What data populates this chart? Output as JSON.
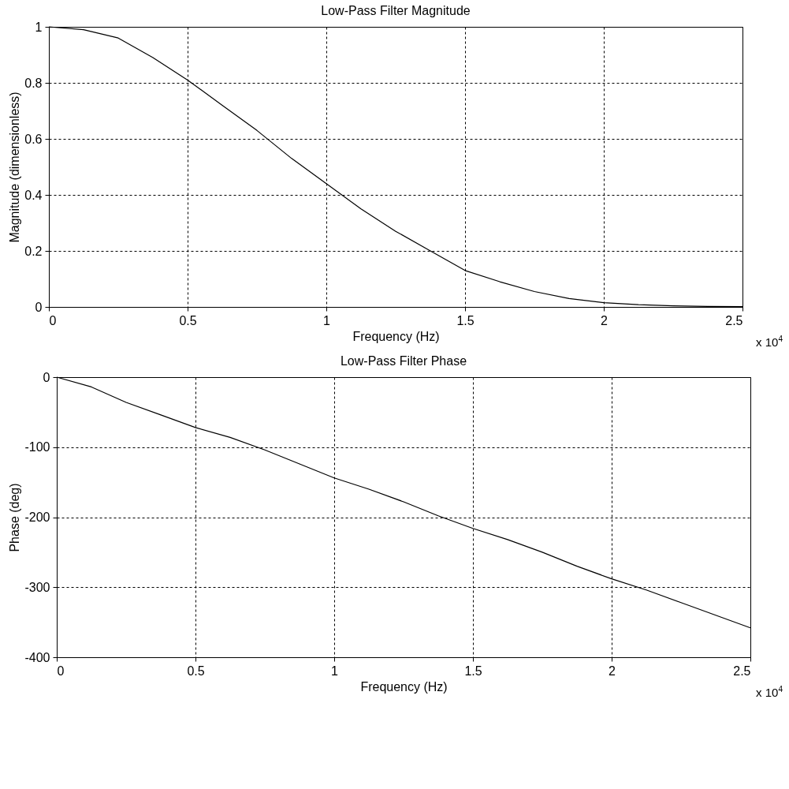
{
  "chart_data": [
    {
      "type": "line",
      "title": "Low-Pass Filter Magnitude",
      "xlabel": "Frequency (Hz)",
      "ylabel": "Magnitude (dimensionless)",
      "x": [
        0,
        0.125,
        0.25,
        0.375,
        0.5,
        0.625,
        0.75,
        0.875,
        1,
        1.125,
        1.25,
        1.375,
        1.5,
        1.625,
        1.75,
        1.875,
        2,
        2.125,
        2.25,
        2.375,
        2.5
      ],
      "series": [
        {
          "color": "#000000",
          "values": [
            1.0,
            0.99,
            0.96,
            0.89,
            0.81,
            0.72,
            0.63,
            0.53,
            0.44,
            0.35,
            0.27,
            0.2,
            0.13,
            0.09,
            0.055,
            0.03,
            0.015,
            0.008,
            0.004,
            0.002,
            0.001
          ]
        }
      ],
      "xlim": [
        0,
        2.5
      ],
      "xticks": [
        0,
        0.5,
        1,
        1.5,
        2,
        2.5
      ],
      "ylim": [
        0,
        1
      ],
      "yticks": [
        0,
        0.2,
        0.4,
        0.6,
        0.8,
        1
      ],
      "grid": true,
      "annotations": [
        "x 10$^{4}$"
      ]
    },
    {
      "type": "line",
      "title": "Low-Pass Filter Phase",
      "xlabel": "Frequency (Hz)",
      "ylabel": "Phase (deg)",
      "x": [
        0,
        0.125,
        0.25,
        0.375,
        0.5,
        0.625,
        0.75,
        0.875,
        1,
        1.125,
        1.25,
        1.375,
        1.5,
        1.625,
        1.75,
        1.875,
        2,
        2.125,
        2.25,
        2.375,
        2.5
      ],
      "series": [
        {
          "color": "#000000",
          "values": [
            0,
            -14,
            -36,
            -54,
            -72,
            -86,
            -104,
            -124,
            -144,
            -160,
            -178,
            -198,
            -216,
            -232,
            -250,
            -270,
            -288,
            -304,
            -322,
            -340,
            -358
          ]
        }
      ],
      "xlim": [
        0,
        2.5
      ],
      "xticks": [
        0,
        0.5,
        1,
        1.5,
        2,
        2.5
      ],
      "ylim": [
        -400,
        0
      ],
      "yticks": [
        -400,
        -300,
        -200,
        -100,
        0
      ],
      "grid": true,
      "annotations": [
        "x 10$^{4}$"
      ]
    }
  ]
}
